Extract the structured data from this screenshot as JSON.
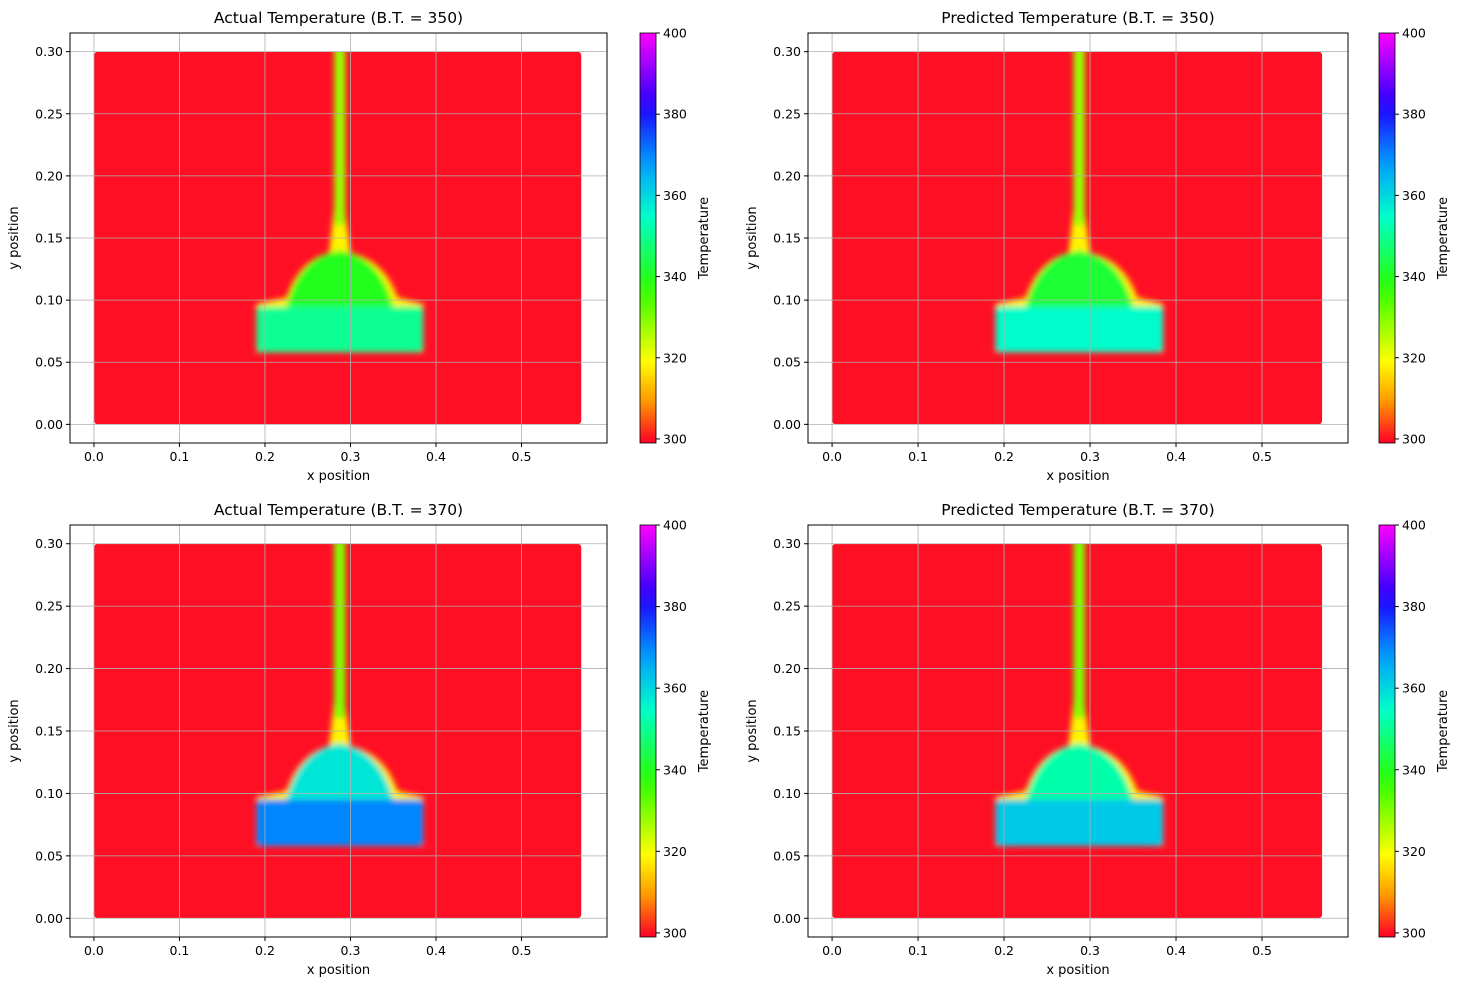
{
  "chart_data": [
    {
      "type": "heatmap",
      "title": "Actual Temperature (B.T. = 350)",
      "xlabel": "x position",
      "ylabel": "y position",
      "xlim": [
        -0.028,
        0.6
      ],
      "ylim": [
        -0.015,
        0.315
      ],
      "xticks": [
        "0.0",
        "0.1",
        "0.2",
        "0.3",
        "0.4",
        "0.5"
      ],
      "yticks": [
        "0.00",
        "0.05",
        "0.10",
        "0.15",
        "0.20",
        "0.25",
        "0.30"
      ],
      "colorbar": {
        "label": "Temperature",
        "min": 299,
        "max": 400,
        "ticks": [
          "300",
          "320",
          "340",
          "360",
          "380",
          "400"
        ]
      },
      "domain": {
        "x": [
          0.0,
          0.57
        ],
        "y": [
          0.0,
          0.3
        ]
      },
      "background_temperature": 300,
      "base_block_temperature": 350,
      "upper_dome_temperature": 340,
      "plume_temperature": 328,
      "grid": true
    },
    {
      "type": "heatmap",
      "title": "Predicted Temperature (B.T. = 350)",
      "xlabel": "x position",
      "ylabel": "y position",
      "xlim": [
        -0.028,
        0.6
      ],
      "ylim": [
        -0.015,
        0.315
      ],
      "xticks": [
        "0.0",
        "0.1",
        "0.2",
        "0.3",
        "0.4",
        "0.5"
      ],
      "yticks": [
        "0.00",
        "0.05",
        "0.10",
        "0.15",
        "0.20",
        "0.25",
        "0.30"
      ],
      "colorbar": {
        "label": "Temperature",
        "min": 299,
        "max": 400,
        "ticks": [
          "300",
          "320",
          "340",
          "360",
          "380",
          "400"
        ]
      },
      "domain": {
        "x": [
          0.0,
          0.57
        ],
        "y": [
          0.0,
          0.3
        ]
      },
      "background_temperature": 300,
      "base_block_temperature": 355,
      "upper_dome_temperature": 342,
      "plume_temperature": 328,
      "grid": true
    },
    {
      "type": "heatmap",
      "title": "Actual Temperature (B.T. = 370)",
      "xlabel": "x position",
      "ylabel": "y position",
      "xlim": [
        -0.028,
        0.6
      ],
      "ylim": [
        -0.015,
        0.315
      ],
      "xticks": [
        "0.0",
        "0.1",
        "0.2",
        "0.3",
        "0.4",
        "0.5"
      ],
      "yticks": [
        "0.00",
        "0.05",
        "0.10",
        "0.15",
        "0.20",
        "0.25",
        "0.30"
      ],
      "colorbar": {
        "label": "Temperature",
        "min": 299,
        "max": 400,
        "ticks": [
          "300",
          "320",
          "340",
          "360",
          "380",
          "400"
        ]
      },
      "domain": {
        "x": [
          0.0,
          0.57
        ],
        "y": [
          0.0,
          0.3
        ]
      },
      "background_temperature": 300,
      "base_block_temperature": 370,
      "upper_dome_temperature": 358,
      "plume_temperature": 330,
      "grid": true
    },
    {
      "type": "heatmap",
      "title": "Predicted Temperature (B.T. = 370)",
      "xlabel": "x position",
      "ylabel": "y position",
      "xlim": [
        -0.028,
        0.6
      ],
      "ylim": [
        -0.015,
        0.315
      ],
      "xticks": [
        "0.0",
        "0.1",
        "0.2",
        "0.3",
        "0.4",
        "0.5"
      ],
      "yticks": [
        "0.00",
        "0.05",
        "0.10",
        "0.15",
        "0.20",
        "0.25",
        "0.30"
      ],
      "colorbar": {
        "label": "Temperature",
        "min": 299,
        "max": 400,
        "ticks": [
          "300",
          "320",
          "340",
          "360",
          "380",
          "400"
        ]
      },
      "domain": {
        "x": [
          0.0,
          0.57
        ],
        "y": [
          0.0,
          0.3
        ]
      },
      "background_temperature": 300,
      "base_block_temperature": 362,
      "upper_dome_temperature": 352,
      "plume_temperature": 330,
      "grid": true
    }
  ],
  "colors": {
    "gridline": "#b0b0b0",
    "colormap_stops": [
      "#ff0028",
      "#ff9600",
      "#ffff00",
      "#28ff00",
      "#00ffc8",
      "#00a0ff",
      "#1e00ff",
      "#ff00ff"
    ]
  }
}
